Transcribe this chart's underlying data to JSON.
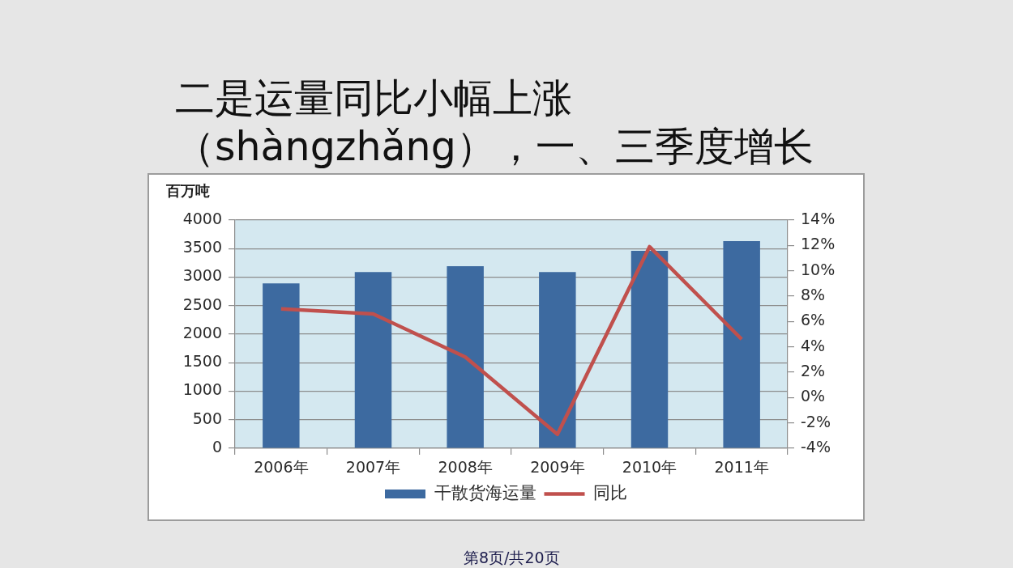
{
  "chart_data": {
    "type": "bar",
    "title": "二是运量同比小幅上涨（shàngzhǎng），一、三季度增长",
    "ylabel": "百万吨",
    "categories": [
      "2006年",
      "2007年",
      "2008年",
      "2009年",
      "2010年",
      "2011年"
    ],
    "series": [
      {
        "name": "干散货海运量",
        "color": "#3d6aa0",
        "values": [
          2890,
          3090,
          3190,
          3090,
          3460,
          3630
        ]
      },
      {
        "name": "同比",
        "type": "line",
        "axis": "y2",
        "color": "#c0504d",
        "values": [
          7.0,
          6.6,
          3.2,
          -2.9,
          11.9,
          4.6
        ]
      }
    ],
    "ylim": [
      0,
      4000
    ],
    "yticks": [
      0,
      500,
      1000,
      1500,
      2000,
      2500,
      3000,
      3500,
      4000
    ],
    "y2lim": [
      -4,
      14
    ],
    "y2ticks": [
      {
        "value": -4,
        "label": "-4%"
      },
      {
        "value": -2,
        "label": "-2%"
      },
      {
        "value": 0,
        "label": "0%"
      },
      {
        "value": 2,
        "label": "2%"
      },
      {
        "value": 4,
        "label": "4%"
      },
      {
        "value": 6,
        "label": "6%"
      },
      {
        "value": 8,
        "label": "8%"
      },
      {
        "value": 10,
        "label": "10%"
      },
      {
        "value": 12,
        "label": "12%"
      },
      {
        "value": 14,
        "label": "14%"
      }
    ],
    "grid": "y",
    "legend": "bottom",
    "annotations": [
      "第8页/共20页"
    ]
  }
}
